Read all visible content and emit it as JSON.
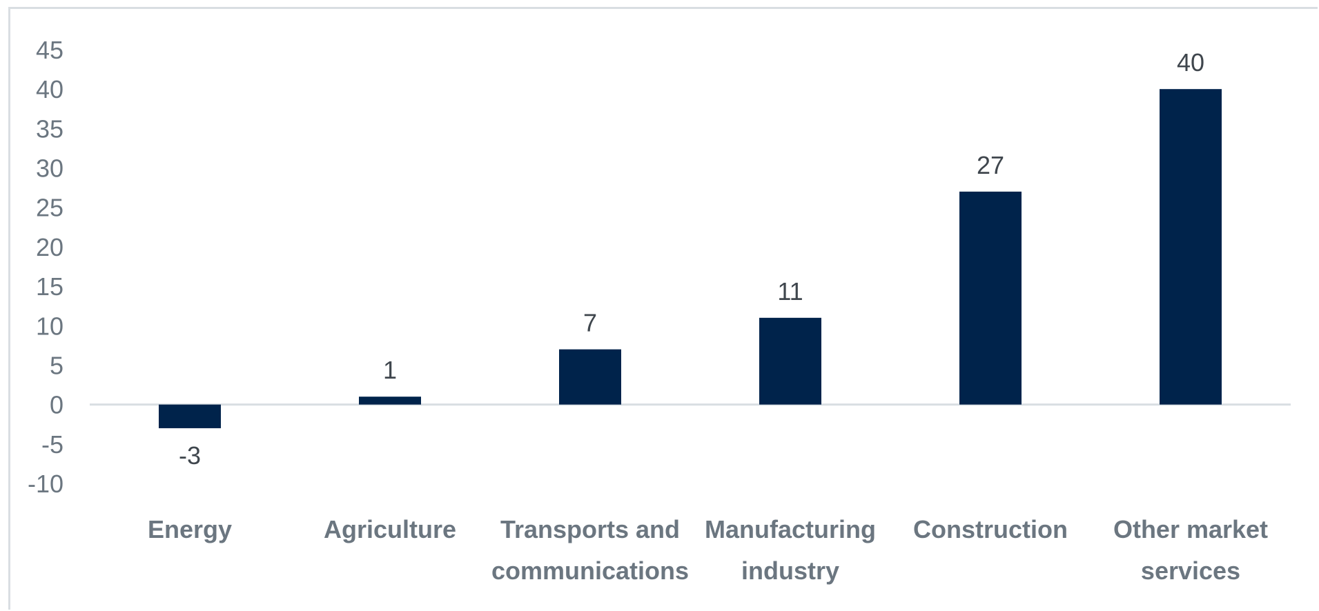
{
  "chart_data": {
    "type": "bar",
    "title": "",
    "xlabel": "",
    "ylabel": "",
    "categories": [
      [
        "Energy"
      ],
      [
        "Agriculture"
      ],
      [
        "Transports and",
        "communications"
      ],
      [
        "Manufacturing",
        "industry"
      ],
      [
        "Construction"
      ],
      [
        "Other market",
        "services"
      ]
    ],
    "values": [
      -3,
      1,
      7,
      11,
      27,
      40
    ],
    "yticks": [
      45,
      40,
      35,
      30,
      25,
      20,
      15,
      10,
      5,
      0,
      -5,
      -10
    ],
    "ylim": [
      -10,
      45
    ],
    "grid": false,
    "bar_color": "#00234b",
    "axis_color": "#d9dee2"
  }
}
